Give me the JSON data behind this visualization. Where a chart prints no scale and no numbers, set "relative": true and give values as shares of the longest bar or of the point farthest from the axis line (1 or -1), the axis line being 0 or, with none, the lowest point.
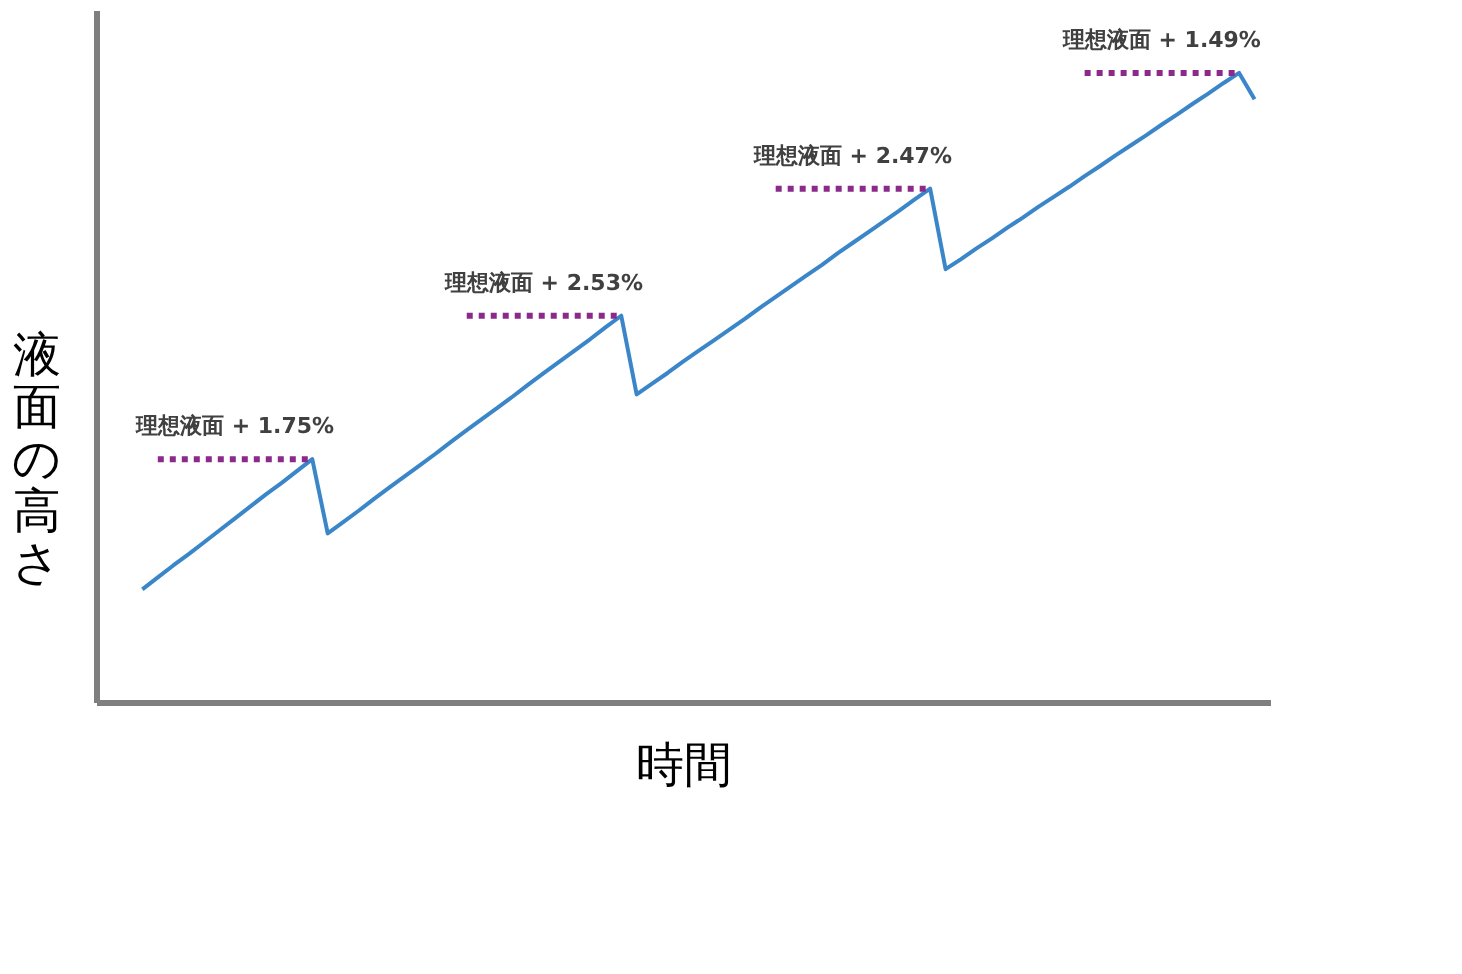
{
  "chart_data": {
    "type": "line",
    "relative": true,
    "xlabel": "時間",
    "ylabel": "液面の高さ",
    "grid": false,
    "marker": "none",
    "line_style": "solid",
    "categories": [
      null,
      null,
      null,
      null,
      null,
      null,
      null,
      null,
      null,
      null,
      null,
      null,
      null,
      null,
      null,
      null,
      null,
      null,
      null,
      null,
      null,
      null,
      null,
      null,
      null,
      null,
      null,
      null,
      null,
      null,
      null,
      null,
      null,
      null,
      null,
      null,
      null,
      null,
      null,
      null,
      null,
      null,
      null,
      null,
      null,
      null,
      null,
      null,
      null,
      null,
      null,
      null,
      null,
      null,
      null,
      null,
      null,
      null,
      null,
      null,
      null,
      null,
      null,
      null,
      null,
      null,
      null,
      null,
      null,
      null,
      null,
      null,
      null
    ],
    "series": [
      {
        "color": "#3a86c8",
        "values": [
          0.179,
          0.198,
          0.217,
          0.235,
          0.254,
          0.273,
          0.292,
          0.311,
          0.33,
          0.348,
          0.367,
          0.386,
          0.268,
          0.286,
          0.304,
          0.323,
          0.341,
          0.359,
          0.377,
          0.395,
          0.414,
          0.432,
          0.45,
          0.468,
          0.486,
          0.505,
          0.523,
          0.541,
          0.559,
          0.577,
          0.596,
          0.614,
          0.489,
          0.506,
          0.523,
          0.541,
          0.558,
          0.575,
          0.592,
          0.609,
          0.627,
          0.644,
          0.661,
          0.678,
          0.695,
          0.713,
          0.73,
          0.747,
          0.764,
          0.781,
          0.799,
          0.816,
          0.688,
          0.704,
          0.721,
          0.737,
          0.754,
          0.77,
          0.787,
          0.803,
          0.819,
          0.836,
          0.852,
          0.869,
          0.885,
          0.901,
          0.918,
          0.934,
          0.951,
          0.967,
          0.984,
          1.0,
          0.958
        ]
      }
    ],
    "annotations": [
      "理想液面 + 1.75%",
      "理想液面 + 2.53%",
      "理想液面 + 2.47%",
      "理想液面 + 1.49%"
    ]
  }
}
